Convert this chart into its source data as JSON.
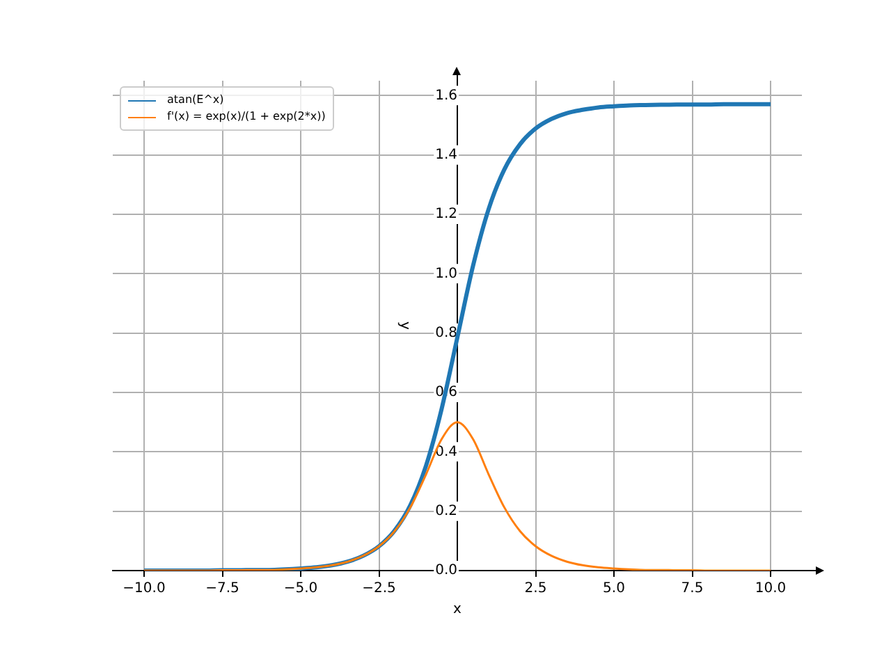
{
  "chart_data": {
    "type": "line",
    "xlabel": "x",
    "ylabel": "y",
    "x": [
      -10,
      -9.5,
      -9,
      -8.5,
      -8,
      -7.5,
      -7,
      -6.5,
      -6,
      -5.5,
      -5,
      -4.5,
      -4,
      -3.5,
      -3,
      -2.5,
      -2,
      -1.5,
      -1,
      -0.5,
      0,
      0.5,
      1,
      1.5,
      2,
      2.5,
      3,
      3.5,
      4,
      4.5,
      5,
      5.5,
      6,
      6.5,
      7,
      7.5,
      8,
      8.5,
      9,
      9.5,
      10
    ],
    "series": [
      {
        "name": "atan(E^x)",
        "color": "#1f77b4",
        "values": [
          0,
          0,
          0,
          0,
          0,
          0.001,
          0.001,
          0.002,
          0.002,
          0.004,
          0.007,
          0.011,
          0.018,
          0.03,
          0.05,
          0.082,
          0.135,
          0.22,
          0.353,
          0.545,
          0.785,
          1.026,
          1.218,
          1.351,
          1.436,
          1.489,
          1.521,
          1.541,
          1.552,
          1.56,
          1.564,
          1.567,
          1.568,
          1.569,
          1.57,
          1.57,
          1.57,
          1.571,
          1.571,
          1.571,
          1.571
        ]
      },
      {
        "name": "f'(x) = exp(x)/(1 + exp(2*x))",
        "color": "#ff7f0e",
        "values": [
          0,
          0,
          0,
          0,
          0,
          0.001,
          0.001,
          0.002,
          0.002,
          0.004,
          0.007,
          0.011,
          0.018,
          0.03,
          0.05,
          0.082,
          0.133,
          0.213,
          0.324,
          0.443,
          0.5,
          0.443,
          0.324,
          0.213,
          0.133,
          0.082,
          0.05,
          0.03,
          0.018,
          0.011,
          0.007,
          0.004,
          0.002,
          0.002,
          0.001,
          0.001,
          0,
          0,
          0,
          0,
          0
        ]
      }
    ],
    "xlim": [
      -11,
      11
    ],
    "ylim": [
      0,
      1.65
    ],
    "xticks": [
      {
        "value": -10,
        "label": "−10.0"
      },
      {
        "value": -7.5,
        "label": "−7.5"
      },
      {
        "value": -5,
        "label": "−5.0"
      },
      {
        "value": -2.5,
        "label": "−2.5"
      },
      {
        "value": 2.5,
        "label": "2.5"
      },
      {
        "value": 5,
        "label": "5.0"
      },
      {
        "value": 7.5,
        "label": "7.5"
      },
      {
        "value": 10,
        "label": "10.0"
      }
    ],
    "yticks": [
      {
        "value": 0,
        "label": "0.0"
      },
      {
        "value": 0.2,
        "label": "0.2"
      },
      {
        "value": 0.4,
        "label": "0.4"
      },
      {
        "value": 0.6,
        "label": "0.6"
      },
      {
        "value": 0.8,
        "label": "0.8"
      },
      {
        "value": 1,
        "label": "1.0"
      },
      {
        "value": 1.2,
        "label": "1.2"
      },
      {
        "value": 1.4,
        "label": "1.4"
      },
      {
        "value": 1.6,
        "label": "1.6"
      }
    ],
    "grid": true,
    "legend": "top left",
    "marker": "none",
    "line_style": "solid"
  }
}
